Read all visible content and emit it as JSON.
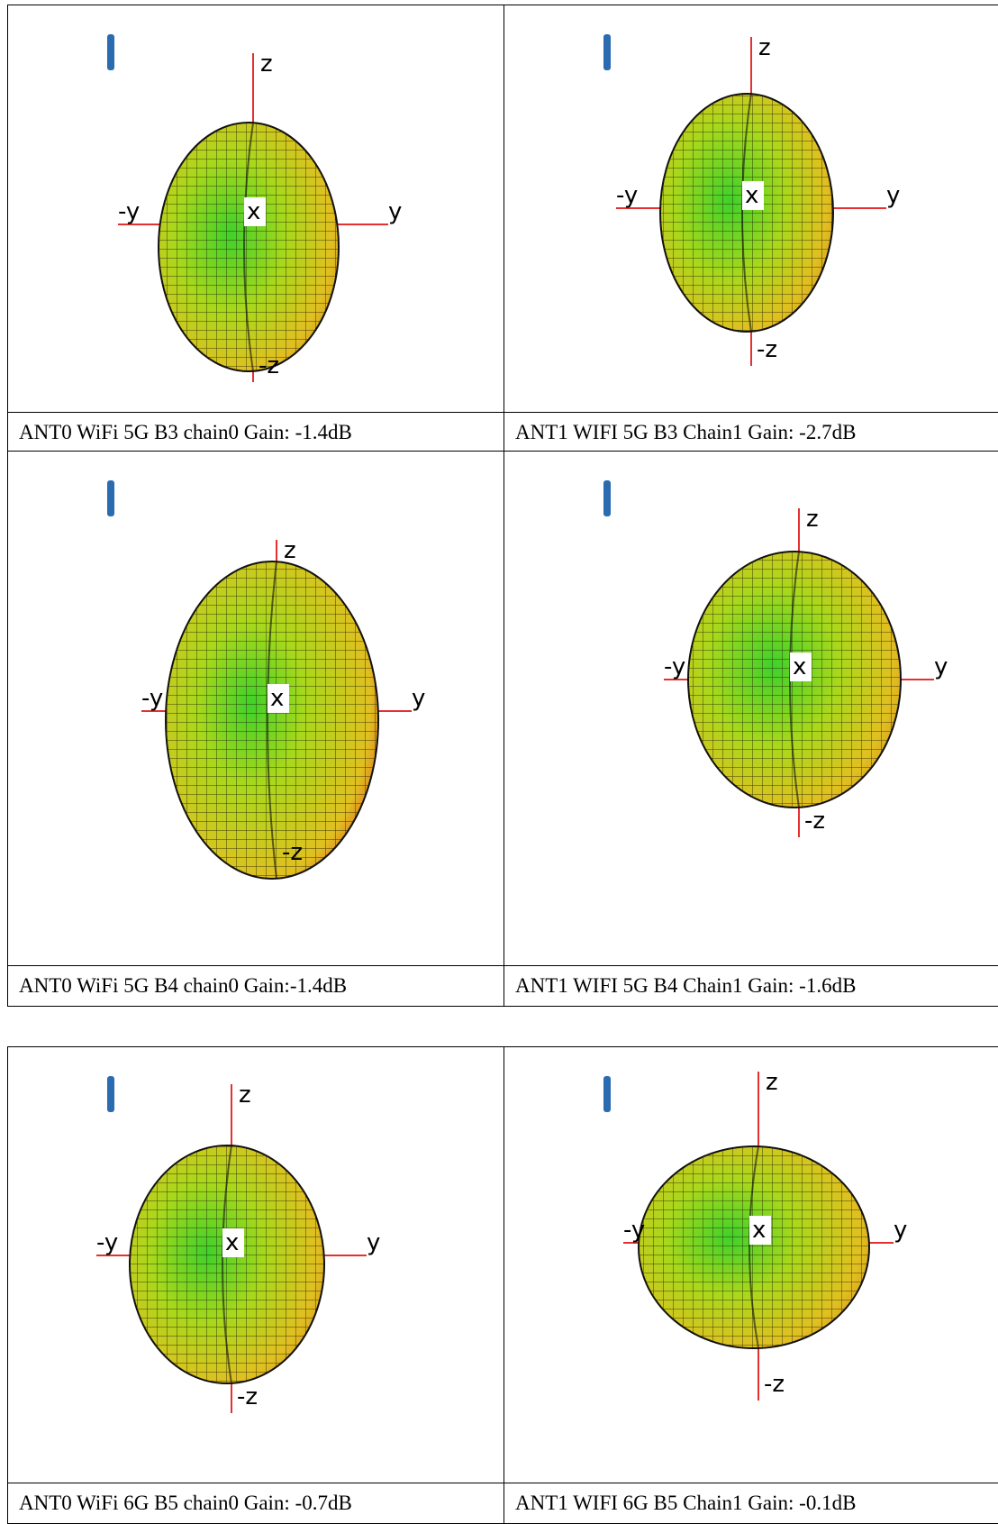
{
  "tables": [
    {
      "cells": [
        {
          "caption": "ANT0 WiFi 5G B3 chain0 Gain: -1.4dB",
          "axes": {
            "z": "z",
            "neg_y": "-y",
            "y": "y",
            "x": "x",
            "neg_z": "-z"
          }
        },
        {
          "caption": "ANT1 WIFI 5G B3 Chain1 Gain: -2.7dB",
          "axes": {
            "z": "z",
            "neg_y": "-y",
            "y": "y",
            "x": "x",
            "neg_z": "-z"
          }
        },
        {
          "caption": "ANT0 WiFi 5G B4 chain0 Gain:-1.4dB",
          "axes": {
            "z": "z",
            "neg_y": "-y",
            "y": "y",
            "x": "x",
            "neg_z": "-z"
          }
        },
        {
          "caption": "ANT1 WIFI 5G B4 Chain1 Gain: -1.6dB",
          "axes": {
            "z": "z",
            "neg_y": "-y",
            "y": "y",
            "x": "x",
            "neg_z": "-z"
          }
        }
      ]
    },
    {
      "cells": [
        {
          "caption": "ANT0 WiFi 6G B5 chain0 Gain: -0.7dB",
          "axes": {
            "z": "z",
            "neg_y": "-y",
            "y": "y",
            "x": "x",
            "neg_z": "-z"
          }
        },
        {
          "caption": "ANT1 WIFI 6G B5 Chain1 Gain: -0.1dB",
          "axes": {
            "z": "z",
            "neg_y": "-y",
            "y": "y",
            "x": "x",
            "neg_z": "-z"
          }
        }
      ]
    }
  ]
}
